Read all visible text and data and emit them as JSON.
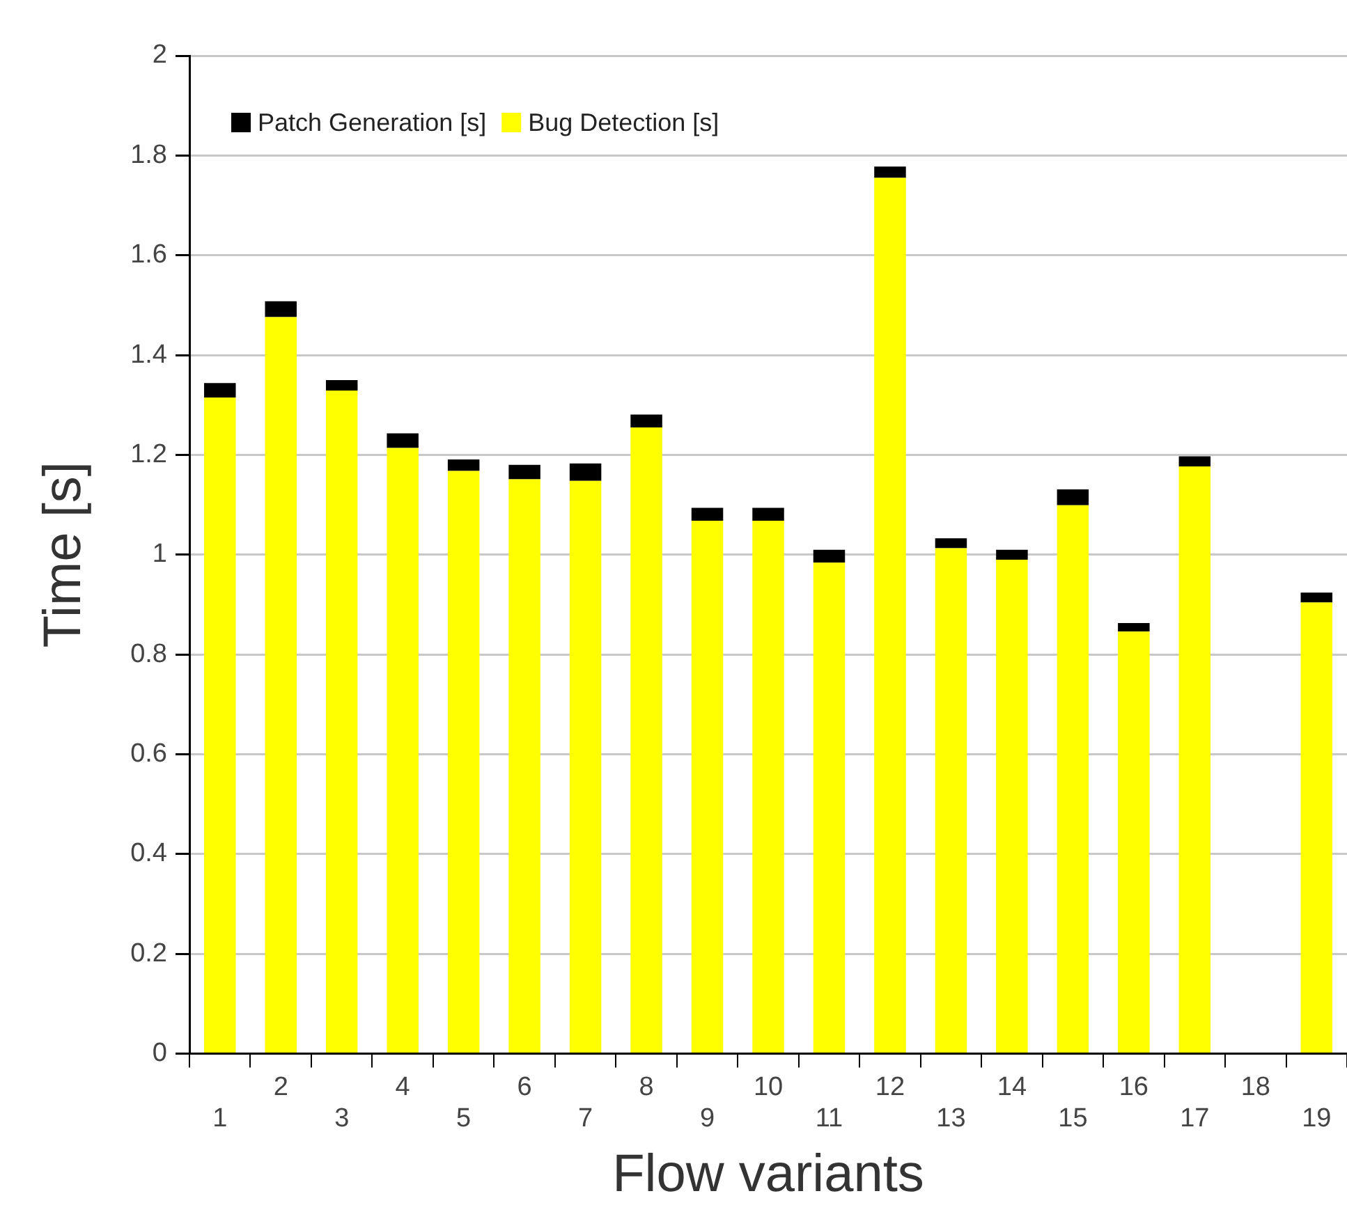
{
  "chart_data": {
    "type": "bar",
    "xlabel": "Flow variants",
    "ylabel": "Time [s]",
    "stacked": true,
    "legend": "top left",
    "grid": "y",
    "categories": [
      "1",
      "2",
      "3",
      "4",
      "5",
      "6",
      "7",
      "8",
      "9",
      "10",
      "11",
      "12",
      "13",
      "14",
      "15",
      "16",
      "17",
      "18",
      "19"
    ],
    "ylim": [
      0,
      2
    ],
    "yticks": [
      0,
      0.2,
      0.4,
      0.6,
      0.8,
      1,
      1.2,
      1.4,
      1.6,
      1.8,
      2
    ],
    "series": [
      {
        "name": "Bug Detection [s]",
        "color": "#ffff00",
        "values": [
          1.315,
          1.476,
          1.329,
          1.214,
          1.168,
          1.151,
          1.148,
          1.255,
          1.068,
          1.068,
          0.984,
          1.755,
          1.013,
          0.99,
          1.099,
          0.846,
          1.177,
          null,
          0.904
        ]
      },
      {
        "name": "Patch Generation [s]",
        "color": "#000000",
        "values": [
          0.029,
          0.032,
          0.021,
          0.029,
          0.023,
          0.029,
          0.035,
          0.026,
          0.026,
          0.026,
          0.026,
          0.023,
          0.02,
          0.02,
          0.032,
          0.017,
          0.02,
          null,
          0.02
        ]
      }
    ]
  }
}
